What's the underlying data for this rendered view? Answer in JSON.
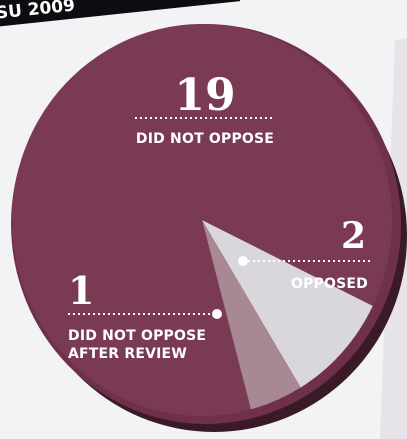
{
  "banner": {
    "text": "SU 2009"
  },
  "chart_data": {
    "type": "pie",
    "slices": [
      {
        "count": "19",
        "label": "DID NOT OPPOSE",
        "value": 19,
        "color": "#7b3a54"
      },
      {
        "count": "2",
        "label": "OPPOSED",
        "value": 2,
        "color": "#d9d7dc"
      },
      {
        "count": "1",
        "label_lines": [
          "DID NOT OPPOSE",
          "AFTER REVIEW"
        ],
        "value": 1,
        "color": "#a88893"
      }
    ]
  }
}
